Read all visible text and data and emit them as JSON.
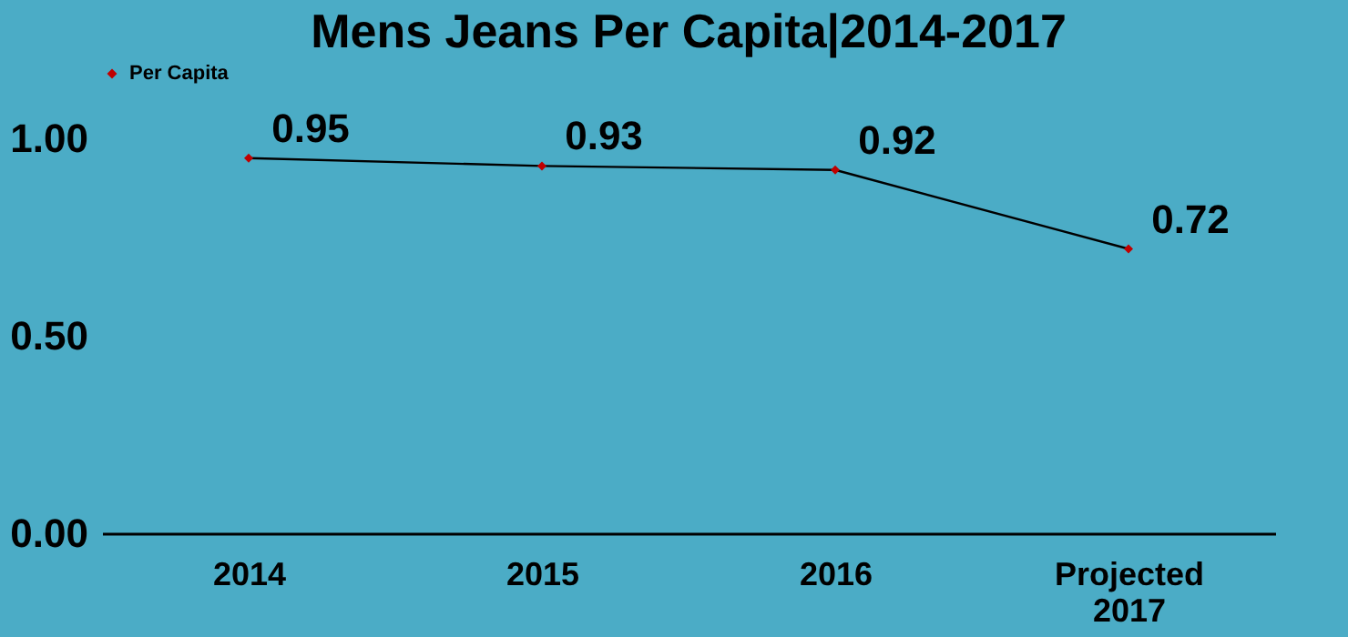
{
  "chart_data": {
    "type": "line",
    "title": "Mens Jeans Per Capita|2014-2017",
    "categories": [
      "2014",
      "2015",
      "2016",
      "Projected 2017"
    ],
    "series": [
      {
        "name": "Per Capita",
        "color": "#c00000",
        "values": [
          0.95,
          0.93,
          0.92,
          0.72
        ]
      }
    ],
    "ylim": [
      0,
      1
    ],
    "yticks": [
      {
        "value": 0,
        "label": "0.00"
      },
      {
        "value": 0.5,
        "label": "0.50"
      },
      {
        "value": 1,
        "label": "1.00"
      }
    ],
    "data_labels": true,
    "legend": "top",
    "grid": false,
    "marker": "diamond",
    "line_style": "solid"
  }
}
